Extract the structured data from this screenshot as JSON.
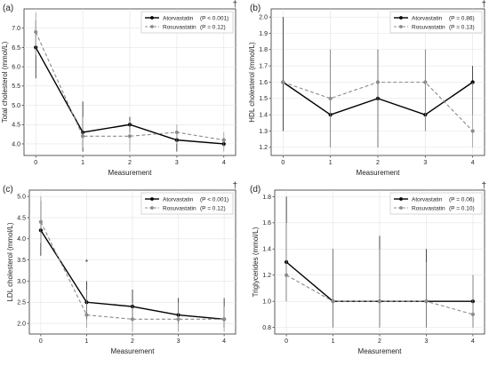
{
  "figure": {
    "xlabel": "Measurement"
  },
  "chart_data": [
    {
      "type": "line",
      "panel": "(a)",
      "dagger": "†",
      "ylabel": "Total cholesterol (mmol/L)",
      "x": [
        0,
        1,
        2,
        3,
        4
      ],
      "xlim": [
        -0.25,
        4.25
      ],
      "ylim": [
        3.7,
        7.5
      ],
      "yticks": [
        4.0,
        4.5,
        5.0,
        5.5,
        6.0,
        6.5,
        7.0
      ],
      "grid": true,
      "legend_position": "top-right",
      "series": [
        {
          "name": "Atorvastatin",
          "p_label": "(P < 0.001)",
          "style": "solid",
          "color": "#000000",
          "values": [
            6.5,
            4.3,
            4.5,
            4.1,
            4.0
          ],
          "err_low": [
            5.7,
            3.8,
            4.3,
            3.8,
            3.9
          ],
          "err_high": [
            7.2,
            5.1,
            4.7,
            4.3,
            4.1
          ]
        },
        {
          "name": "Rosuvastatin",
          "p_label": "(P = 0.12)",
          "style": "dashed",
          "color": "#8c8c8c",
          "values": [
            6.9,
            4.2,
            4.2,
            4.3,
            4.1
          ],
          "err_low": [
            6.3,
            3.9,
            3.8,
            4.0,
            3.8
          ],
          "err_high": [
            7.4,
            4.7,
            4.6,
            4.5,
            4.3
          ]
        }
      ],
      "annotations": []
    },
    {
      "type": "line",
      "panel": "(b)",
      "dagger": "†",
      "ylabel": "HDL cholesterol (mmol/L)",
      "x": [
        0,
        1,
        2,
        3,
        4
      ],
      "xlim": [
        -0.25,
        4.25
      ],
      "ylim": [
        1.15,
        2.05
      ],
      "yticks": [
        1.2,
        1.3,
        1.4,
        1.5,
        1.6,
        1.7,
        1.8,
        1.9,
        2.0
      ],
      "grid": true,
      "legend_position": "top-right",
      "series": [
        {
          "name": "Atorvastatin",
          "p_label": "(P = 0.86)",
          "style": "solid",
          "color": "#000000",
          "values": [
            1.6,
            1.4,
            1.5,
            1.4,
            1.6
          ],
          "err_low": [
            1.3,
            1.2,
            1.2,
            1.3,
            1.4
          ],
          "err_high": [
            2.0,
            1.8,
            1.8,
            1.8,
            1.7
          ]
        },
        {
          "name": "Rosuvastatin",
          "p_label": "(P = 0.13)",
          "style": "dashed",
          "color": "#8c8c8c",
          "values": [
            1.6,
            1.5,
            1.6,
            1.6,
            1.3
          ],
          "err_low": [
            1.6,
            1.2,
            1.2,
            1.3,
            1.2
          ],
          "err_high": [
            1.6,
            1.8,
            1.8,
            1.8,
            1.6
          ]
        }
      ],
      "annotations": []
    },
    {
      "type": "line",
      "panel": "(c)",
      "dagger": "†",
      "ylabel": "LDL cholesterol (mmol/L)",
      "x": [
        0,
        1,
        2,
        3,
        4
      ],
      "xlim": [
        -0.25,
        4.25
      ],
      "ylim": [
        1.75,
        5.15
      ],
      "yticks": [
        2.0,
        2.5,
        3.0,
        3.5,
        4.0,
        4.5,
        5.0
      ],
      "grid": true,
      "legend_position": "top-right",
      "series": [
        {
          "name": "Atorvastatin",
          "p_label": "(P < 0.001)",
          "style": "solid",
          "color": "#000000",
          "values": [
            4.2,
            2.5,
            2.4,
            2.2,
            2.1
          ],
          "err_low": [
            3.6,
            2.1,
            2.1,
            2.0,
            1.9
          ],
          "err_high": [
            4.9,
            3.0,
            2.8,
            2.6,
            2.6
          ]
        },
        {
          "name": "Rosuvastatin",
          "p_label": "(P = 0.12)",
          "style": "dashed",
          "color": "#8c8c8c",
          "values": [
            4.4,
            2.2,
            2.1,
            2.1,
            2.1
          ],
          "err_low": [
            3.9,
            1.9,
            1.8,
            1.8,
            1.8
          ],
          "err_high": [
            5.0,
            2.8,
            2.5,
            2.5,
            2.4
          ]
        }
      ],
      "annotations": [
        {
          "text": "*",
          "x": 1,
          "y": 3.45
        }
      ]
    },
    {
      "type": "line",
      "panel": "(d)",
      "dagger": "†",
      "ylabel": "Triglycerides (mmol/L)",
      "x": [
        0,
        1,
        2,
        3,
        4
      ],
      "xlim": [
        -0.25,
        4.25
      ],
      "ylim": [
        0.75,
        1.85
      ],
      "yticks": [
        0.8,
        1.0,
        1.2,
        1.4,
        1.6,
        1.8
      ],
      "grid": true,
      "legend_position": "top-right",
      "series": [
        {
          "name": "Atorvastatin",
          "p_label": "(P = 0.06)",
          "style": "solid",
          "color": "#000000",
          "values": [
            1.3,
            1.0,
            1.0,
            1.0,
            1.0
          ],
          "err_low": [
            1.0,
            0.8,
            0.8,
            0.8,
            0.8
          ],
          "err_high": [
            1.8,
            1.4,
            1.5,
            1.4,
            1.2
          ]
        },
        {
          "name": "Rosuvastatin",
          "p_label": "(P = 0.10)",
          "style": "dashed",
          "color": "#8c8c8c",
          "values": [
            1.2,
            1.0,
            1.0,
            1.0,
            0.9
          ],
          "err_low": [
            1.0,
            0.8,
            0.8,
            0.8,
            0.8
          ],
          "err_high": [
            1.6,
            1.4,
            1.4,
            1.3,
            1.2
          ]
        }
      ],
      "annotations": []
    }
  ]
}
